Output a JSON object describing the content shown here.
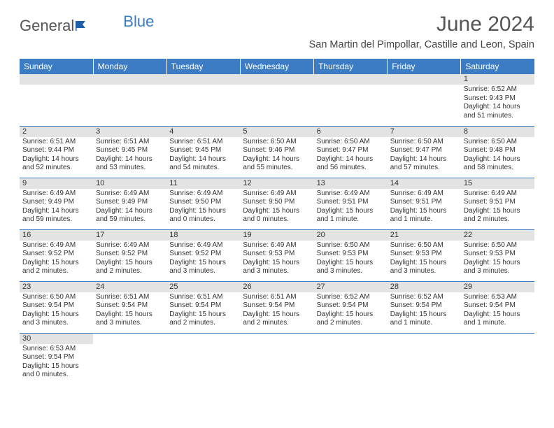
{
  "logo": {
    "part1": "General",
    "part2": "Blue"
  },
  "title": "June 2024",
  "location": "San Martin del Pimpollar, Castille and Leon, Spain",
  "weekday_header_bg": "#3b7cc4",
  "weekdays": [
    "Sunday",
    "Monday",
    "Tuesday",
    "Wednesday",
    "Thursday",
    "Friday",
    "Saturday"
  ],
  "weeks": [
    [
      {
        "blank": true
      },
      {
        "blank": true
      },
      {
        "blank": true
      },
      {
        "blank": true
      },
      {
        "blank": true
      },
      {
        "blank": true
      },
      {
        "n": "1",
        "sr": "Sunrise: 6:52 AM",
        "ss": "Sunset: 9:43 PM",
        "dl1": "Daylight: 14 hours",
        "dl2": "and 51 minutes."
      }
    ],
    [
      {
        "n": "2",
        "sr": "Sunrise: 6:51 AM",
        "ss": "Sunset: 9:44 PM",
        "dl1": "Daylight: 14 hours",
        "dl2": "and 52 minutes."
      },
      {
        "n": "3",
        "sr": "Sunrise: 6:51 AM",
        "ss": "Sunset: 9:45 PM",
        "dl1": "Daylight: 14 hours",
        "dl2": "and 53 minutes."
      },
      {
        "n": "4",
        "sr": "Sunrise: 6:51 AM",
        "ss": "Sunset: 9:45 PM",
        "dl1": "Daylight: 14 hours",
        "dl2": "and 54 minutes."
      },
      {
        "n": "5",
        "sr": "Sunrise: 6:50 AM",
        "ss": "Sunset: 9:46 PM",
        "dl1": "Daylight: 14 hours",
        "dl2": "and 55 minutes."
      },
      {
        "n": "6",
        "sr": "Sunrise: 6:50 AM",
        "ss": "Sunset: 9:47 PM",
        "dl1": "Daylight: 14 hours",
        "dl2": "and 56 minutes."
      },
      {
        "n": "7",
        "sr": "Sunrise: 6:50 AM",
        "ss": "Sunset: 9:47 PM",
        "dl1": "Daylight: 14 hours",
        "dl2": "and 57 minutes."
      },
      {
        "n": "8",
        "sr": "Sunrise: 6:50 AM",
        "ss": "Sunset: 9:48 PM",
        "dl1": "Daylight: 14 hours",
        "dl2": "and 58 minutes."
      }
    ],
    [
      {
        "n": "9",
        "sr": "Sunrise: 6:49 AM",
        "ss": "Sunset: 9:49 PM",
        "dl1": "Daylight: 14 hours",
        "dl2": "and 59 minutes."
      },
      {
        "n": "10",
        "sr": "Sunrise: 6:49 AM",
        "ss": "Sunset: 9:49 PM",
        "dl1": "Daylight: 14 hours",
        "dl2": "and 59 minutes."
      },
      {
        "n": "11",
        "sr": "Sunrise: 6:49 AM",
        "ss": "Sunset: 9:50 PM",
        "dl1": "Daylight: 15 hours",
        "dl2": "and 0 minutes."
      },
      {
        "n": "12",
        "sr": "Sunrise: 6:49 AM",
        "ss": "Sunset: 9:50 PM",
        "dl1": "Daylight: 15 hours",
        "dl2": "and 0 minutes."
      },
      {
        "n": "13",
        "sr": "Sunrise: 6:49 AM",
        "ss": "Sunset: 9:51 PM",
        "dl1": "Daylight: 15 hours",
        "dl2": "and 1 minute."
      },
      {
        "n": "14",
        "sr": "Sunrise: 6:49 AM",
        "ss": "Sunset: 9:51 PM",
        "dl1": "Daylight: 15 hours",
        "dl2": "and 1 minute."
      },
      {
        "n": "15",
        "sr": "Sunrise: 6:49 AM",
        "ss": "Sunset: 9:51 PM",
        "dl1": "Daylight: 15 hours",
        "dl2": "and 2 minutes."
      }
    ],
    [
      {
        "n": "16",
        "sr": "Sunrise: 6:49 AM",
        "ss": "Sunset: 9:52 PM",
        "dl1": "Daylight: 15 hours",
        "dl2": "and 2 minutes."
      },
      {
        "n": "17",
        "sr": "Sunrise: 6:49 AM",
        "ss": "Sunset: 9:52 PM",
        "dl1": "Daylight: 15 hours",
        "dl2": "and 2 minutes."
      },
      {
        "n": "18",
        "sr": "Sunrise: 6:49 AM",
        "ss": "Sunset: 9:52 PM",
        "dl1": "Daylight: 15 hours",
        "dl2": "and 3 minutes."
      },
      {
        "n": "19",
        "sr": "Sunrise: 6:49 AM",
        "ss": "Sunset: 9:53 PM",
        "dl1": "Daylight: 15 hours",
        "dl2": "and 3 minutes."
      },
      {
        "n": "20",
        "sr": "Sunrise: 6:50 AM",
        "ss": "Sunset: 9:53 PM",
        "dl1": "Daylight: 15 hours",
        "dl2": "and 3 minutes."
      },
      {
        "n": "21",
        "sr": "Sunrise: 6:50 AM",
        "ss": "Sunset: 9:53 PM",
        "dl1": "Daylight: 15 hours",
        "dl2": "and 3 minutes."
      },
      {
        "n": "22",
        "sr": "Sunrise: 6:50 AM",
        "ss": "Sunset: 9:53 PM",
        "dl1": "Daylight: 15 hours",
        "dl2": "and 3 minutes."
      }
    ],
    [
      {
        "n": "23",
        "sr": "Sunrise: 6:50 AM",
        "ss": "Sunset: 9:54 PM",
        "dl1": "Daylight: 15 hours",
        "dl2": "and 3 minutes."
      },
      {
        "n": "24",
        "sr": "Sunrise: 6:51 AM",
        "ss": "Sunset: 9:54 PM",
        "dl1": "Daylight: 15 hours",
        "dl2": "and 3 minutes."
      },
      {
        "n": "25",
        "sr": "Sunrise: 6:51 AM",
        "ss": "Sunset: 9:54 PM",
        "dl1": "Daylight: 15 hours",
        "dl2": "and 2 minutes."
      },
      {
        "n": "26",
        "sr": "Sunrise: 6:51 AM",
        "ss": "Sunset: 9:54 PM",
        "dl1": "Daylight: 15 hours",
        "dl2": "and 2 minutes."
      },
      {
        "n": "27",
        "sr": "Sunrise: 6:52 AM",
        "ss": "Sunset: 9:54 PM",
        "dl1": "Daylight: 15 hours",
        "dl2": "and 2 minutes."
      },
      {
        "n": "28",
        "sr": "Sunrise: 6:52 AM",
        "ss": "Sunset: 9:54 PM",
        "dl1": "Daylight: 15 hours",
        "dl2": "and 1 minute."
      },
      {
        "n": "29",
        "sr": "Sunrise: 6:53 AM",
        "ss": "Sunset: 9:54 PM",
        "dl1": "Daylight: 15 hours",
        "dl2": "and 1 minute."
      }
    ],
    [
      {
        "n": "30",
        "sr": "Sunrise: 6:53 AM",
        "ss": "Sunset: 9:54 PM",
        "dl1": "Daylight: 15 hours",
        "dl2": "and 0 minutes."
      },
      {
        "blank": true
      },
      {
        "blank": true
      },
      {
        "blank": true
      },
      {
        "blank": true
      },
      {
        "blank": true
      },
      {
        "blank": true
      }
    ]
  ]
}
